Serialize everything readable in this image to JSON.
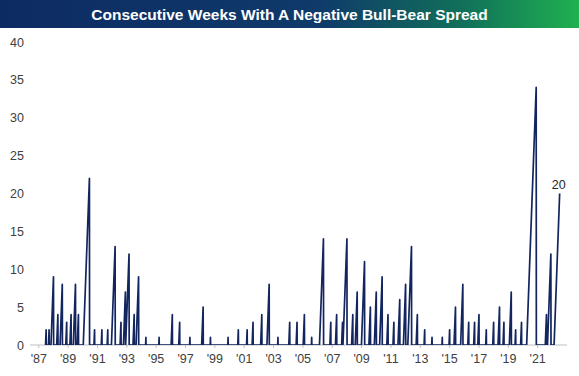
{
  "chart_data": {
    "type": "line",
    "title": "Consecutive Weeks With A Negative Bull-Bear Spread",
    "color": "#13255f",
    "grid": false,
    "annotation": "20",
    "xlim": [
      1986.4,
      2023.0
    ],
    "ylim": [
      0,
      40
    ],
    "yticks": [
      0,
      5,
      10,
      15,
      20,
      25,
      30,
      35,
      40
    ],
    "xticks": [
      {
        "value": 1987,
        "label": "'87"
      },
      {
        "value": 1989,
        "label": "'89"
      },
      {
        "value": 1991,
        "label": "'91"
      },
      {
        "value": 1993,
        "label": "'93"
      },
      {
        "value": 1995,
        "label": "'95"
      },
      {
        "value": 1997,
        "label": "'97"
      },
      {
        "value": 1999,
        "label": "'99"
      },
      {
        "value": 2001,
        "label": "'01"
      },
      {
        "value": 2003,
        "label": "'03"
      },
      {
        "value": 2005,
        "label": "'05"
      },
      {
        "value": 2007,
        "label": "'07"
      },
      {
        "value": 2009,
        "label": "'09"
      },
      {
        "value": 2011,
        "label": "'11"
      },
      {
        "value": 2013,
        "label": "'13"
      },
      {
        "value": 2015,
        "label": "'15"
      },
      {
        "value": 2017,
        "label": "'17"
      },
      {
        "value": 2019,
        "label": "'19"
      },
      {
        "value": 2021,
        "label": "'21"
      }
    ],
    "x": [
      1987.46,
      1987.5,
      1987.51,
      1987.66,
      1987.7,
      1987.71,
      1987.83,
      1988.0,
      1988.01,
      1988.22,
      1988.3,
      1988.31,
      1988.45,
      1988.6,
      1988.61,
      1988.84,
      1988.9,
      1988.91,
      1989.12,
      1989.2,
      1989.21,
      1989.35,
      1989.5,
      1989.51,
      1989.62,
      1989.7,
      1989.71,
      1990.03,
      1990.45,
      1990.46,
      1990.76,
      1990.8,
      1990.81,
      1991.26,
      1991.3,
      1991.31,
      1991.66,
      1991.7,
      1991.71,
      1991.95,
      1992.2,
      1992.21,
      1992.54,
      1992.6,
      1992.61,
      1992.77,
      1992.9,
      1992.91,
      1992.92,
      1993.15,
      1993.16,
      1993.42,
      1993.5,
      1993.51,
      1993.63,
      1993.8,
      1993.81,
      1994.28,
      1994.3,
      1994.31,
      1995.18,
      1995.2,
      1995.21,
      1996.02,
      1996.1,
      1996.11,
      1996.54,
      1996.6,
      1996.61,
      1997.28,
      1997.3,
      1997.31,
      1998.1,
      1998.2,
      1998.21,
      1998.68,
      1998.7,
      1998.71,
      1999.88,
      1999.9,
      1999.91,
      2000.56,
      2000.6,
      2000.61,
      2001.16,
      2001.2,
      2001.21,
      2001.54,
      2001.6,
      2001.61,
      2002.12,
      2002.2,
      2002.21,
      2002.55,
      2002.7,
      2002.71,
      2003.28,
      2003.3,
      2003.31,
      2004.04,
      2004.1,
      2004.11,
      2004.54,
      2004.6,
      2004.61,
      2005.02,
      2005.1,
      2005.11,
      2005.58,
      2005.6,
      2005.61,
      2006.13,
      2006.4,
      2006.41,
      2006.84,
      2006.9,
      2006.91,
      2007.22,
      2007.3,
      2007.31,
      2007.64,
      2007.7,
      2007.71,
      2007.73,
      2008.0,
      2008.01,
      2008.32,
      2008.4,
      2008.41,
      2008.57,
      2008.7,
      2008.71,
      2008.99,
      2009.2,
      2009.21,
      2009.5,
      2009.6,
      2009.61,
      2009.87,
      2010.0,
      2010.01,
      2010.23,
      2010.4,
      2010.41,
      2010.72,
      2010.8,
      2010.81,
      2011.14,
      2011.2,
      2011.21,
      2011.48,
      2011.6,
      2011.61,
      2011.85,
      2012.0,
      2012.01,
      2012.15,
      2012.4,
      2012.41,
      2012.72,
      2012.8,
      2012.81,
      2013.26,
      2013.3,
      2013.31,
      2013.78,
      2013.8,
      2013.81,
      2014.48,
      2014.5,
      2014.51,
      2014.96,
      2015.0,
      2015.01,
      2015.3,
      2015.4,
      2015.41,
      2015.75,
      2015.9,
      2015.91,
      2016.24,
      2016.3,
      2016.31,
      2016.64,
      2016.7,
      2016.71,
      2016.92,
      2017.0,
      2017.01,
      2017.46,
      2017.5,
      2017.51,
      2017.94,
      2018.0,
      2018.01,
      2018.3,
      2018.4,
      2018.41,
      2018.64,
      2018.7,
      2018.71,
      2019.07,
      2019.2,
      2019.21,
      2019.46,
      2019.5,
      2019.51,
      2019.84,
      2019.9,
      2019.91,
      2020.25,
      2020.9,
      2020.91,
      2021.52,
      2021.6,
      2021.61,
      2021.67,
      2021.9,
      2021.91,
      2022.12,
      2022.5
    ],
    "values": [
      0,
      2,
      0,
      0,
      2,
      0,
      0,
      9,
      0,
      0,
      4,
      0,
      0,
      8,
      0,
      0,
      3,
      0,
      0,
      4,
      0,
      0,
      8,
      0,
      0,
      4,
      0,
      0,
      22,
      0,
      0,
      2,
      0,
      0,
      2,
      0,
      0,
      2,
      0,
      0,
      13,
      0,
      0,
      3,
      0,
      0,
      7,
      0,
      0,
      12,
      0,
      0,
      4,
      0,
      0,
      9,
      0,
      0,
      1,
      0,
      0,
      1,
      0,
      0,
      4,
      0,
      0,
      3,
      0,
      0,
      1,
      0,
      0,
      5,
      0,
      0,
      1,
      0,
      0,
      1,
      0,
      0,
      2,
      0,
      0,
      2,
      0,
      0,
      3,
      0,
      0,
      4,
      0,
      0,
      8,
      0,
      0,
      1,
      0,
      0,
      3,
      0,
      0,
      3,
      0,
      0,
      4,
      0,
      0,
      1,
      0,
      0,
      14,
      0,
      0,
      3,
      0,
      0,
      4,
      0,
      0,
      3,
      0,
      0,
      14,
      0,
      0,
      4,
      0,
      0,
      7,
      0,
      0,
      11,
      0,
      0,
      5,
      0,
      0,
      7,
      0,
      0,
      9,
      0,
      0,
      4,
      0,
      0,
      3,
      0,
      0,
      6,
      0,
      0,
      8,
      0,
      0,
      13,
      0,
      0,
      4,
      0,
      0,
      2,
      0,
      0,
      1,
      0,
      0,
      1,
      0,
      0,
      2,
      0,
      0,
      5,
      0,
      0,
      8,
      0,
      0,
      3,
      0,
      0,
      3,
      0,
      0,
      4,
      0,
      0,
      2,
      0,
      0,
      3,
      0,
      0,
      5,
      0,
      0,
      3,
      0,
      0,
      7,
      0,
      0,
      2,
      0,
      0,
      3,
      0,
      0,
      34,
      0,
      0,
      4,
      0,
      0,
      12,
      0,
      0,
      20
    ]
  }
}
